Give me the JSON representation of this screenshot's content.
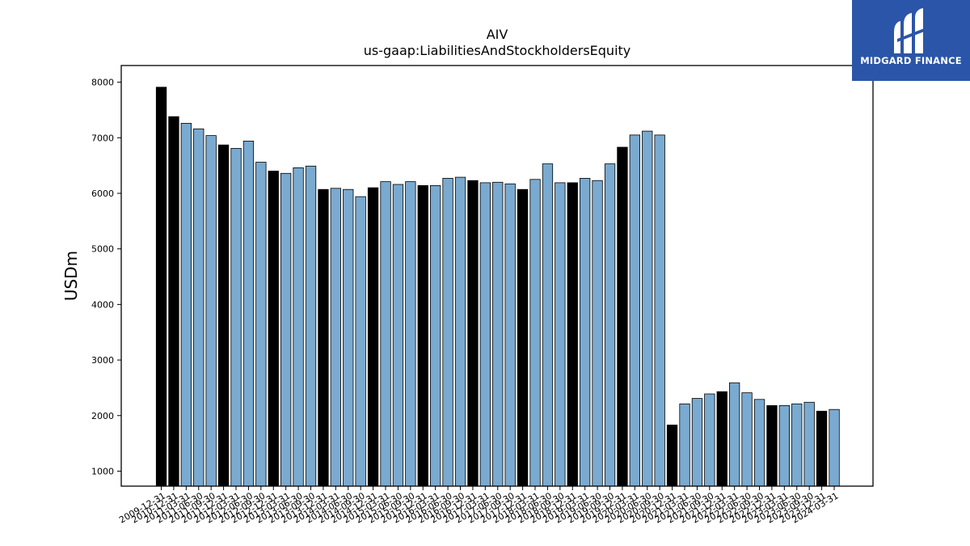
{
  "brand": {
    "name": "MIDGARD FINANCE",
    "background": "#2b55a8"
  },
  "chart_data": {
    "type": "bar",
    "title": "AIV",
    "subtitle": "us-gaap:LiabilitiesAndStockholdersEquity",
    "ylabel": "USDm",
    "xlabel": "",
    "ylim": [
      730,
      8300
    ],
    "yticks": [
      1000,
      2000,
      3000,
      4000,
      5000,
      6000,
      7000,
      8000
    ],
    "legend": "none",
    "grid": false,
    "colors": {
      "q4": "#000000",
      "other": "#7aaad0",
      "edge": "#000000"
    },
    "categories": [
      "2009-12-31",
      "2010-12-31",
      "2011-03-31",
      "2011-06-30",
      "2011-09-30",
      "2011-12-31",
      "2012-03-31",
      "2012-06-30",
      "2012-09-30",
      "2012-12-31",
      "2013-03-31",
      "2013-06-30",
      "2013-09-30",
      "2013-12-31",
      "2014-03-31",
      "2014-06-30",
      "2014-09-30",
      "2014-12-31",
      "2015-03-31",
      "2015-06-30",
      "2015-09-30",
      "2015-12-31",
      "2016-03-31",
      "2016-06-30",
      "2016-09-30",
      "2016-12-31",
      "2017-03-31",
      "2017-06-30",
      "2017-09-30",
      "2017-12-31",
      "2018-03-31",
      "2018-06-30",
      "2018-09-30",
      "2018-12-31",
      "2019-03-31",
      "2019-06-30",
      "2019-09-30",
      "2019-12-31",
      "2020-03-31",
      "2020-06-30",
      "2020-09-30",
      "2020-12-31",
      "2021-03-31",
      "2021-06-30",
      "2021-09-30",
      "2021-12-31",
      "2022-03-31",
      "2022-06-30",
      "2022-09-30",
      "2022-12-31",
      "2023-03-31",
      "2023-06-30",
      "2023-09-30",
      "2023-12-31",
      "2024-03-31"
    ],
    "values": [
      7910,
      7380,
      7260,
      7160,
      7040,
      6870,
      6810,
      6940,
      6560,
      6400,
      6360,
      6460,
      6490,
      6070,
      6090,
      6070,
      5940,
      6100,
      6210,
      6160,
      6210,
      6140,
      6140,
      6270,
      6290,
      6230,
      6190,
      6200,
      6170,
      6070,
      6250,
      6530,
      6190,
      6190,
      6270,
      6230,
      6530,
      6830,
      7050,
      7120,
      7050,
      1830,
      2210,
      2310,
      2390,
      2430,
      2590,
      2410,
      2290,
      2180,
      2180,
      2210,
      2240,
      2080,
      2110
    ]
  }
}
